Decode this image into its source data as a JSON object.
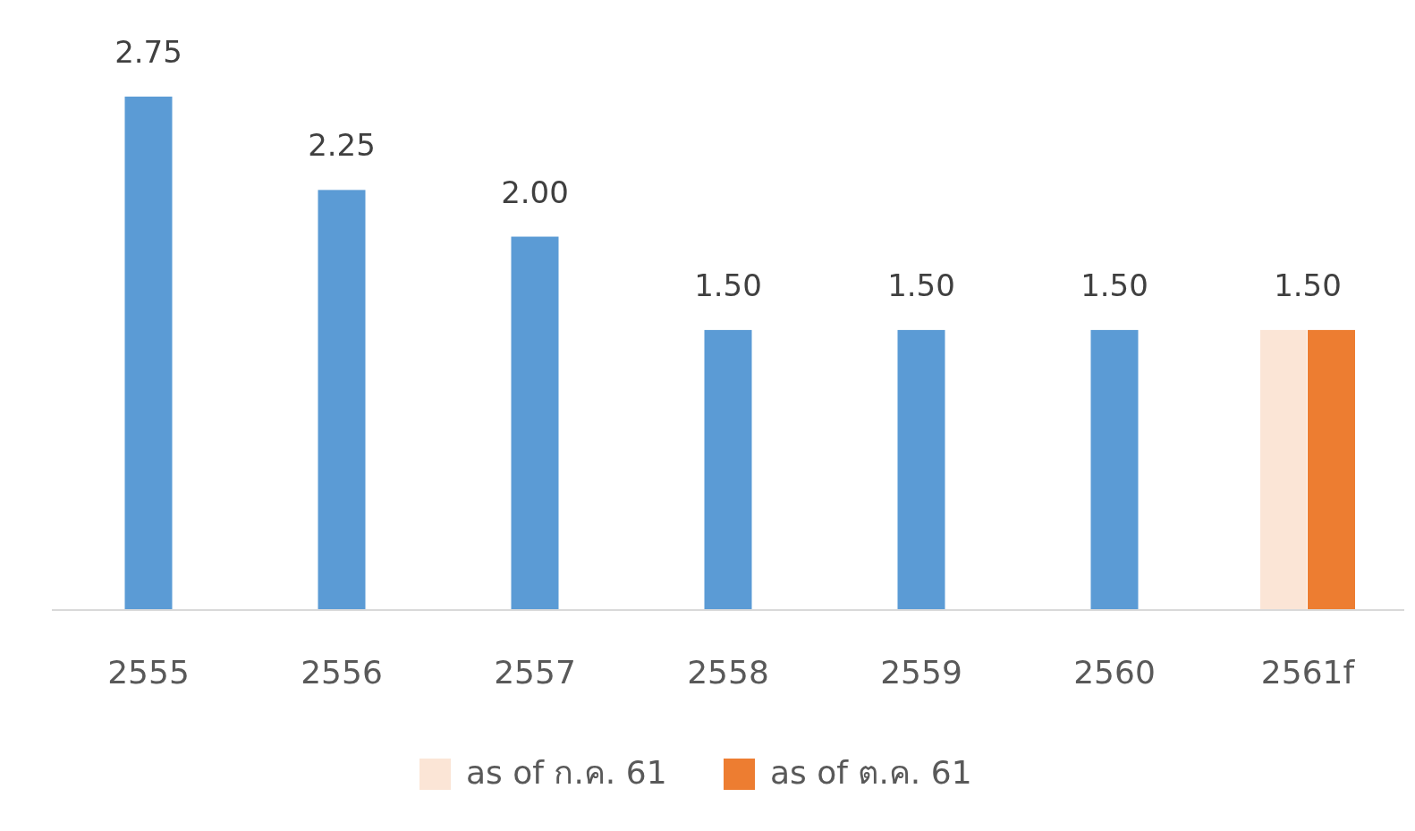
{
  "chart_data": {
    "type": "bar",
    "categories": [
      "2555",
      "2556",
      "2557",
      "2558",
      "2559",
      "2560",
      "2561f"
    ],
    "series": [
      {
        "color": "#5b9bd5",
        "values": [
          2.75,
          2.25,
          2.0,
          1.5,
          1.5,
          1.5,
          null
        ],
        "value_labels": [
          "2.75",
          "2.25",
          "2.00",
          "1.50",
          "1.50",
          "1.50",
          null
        ]
      },
      {
        "name": "as of ก.ค. 61",
        "color": "#fbe5d6",
        "values": [
          null,
          null,
          null,
          null,
          null,
          null,
          1.5
        ],
        "value_labels": [
          null,
          null,
          null,
          null,
          null,
          null,
          "1.50"
        ]
      },
      {
        "name": "as of ต.ค. 61",
        "color": "#ed7d31",
        "values": [
          null,
          null,
          null,
          null,
          null,
          null,
          1.5
        ]
      }
    ],
    "legend": "bottom"
  }
}
